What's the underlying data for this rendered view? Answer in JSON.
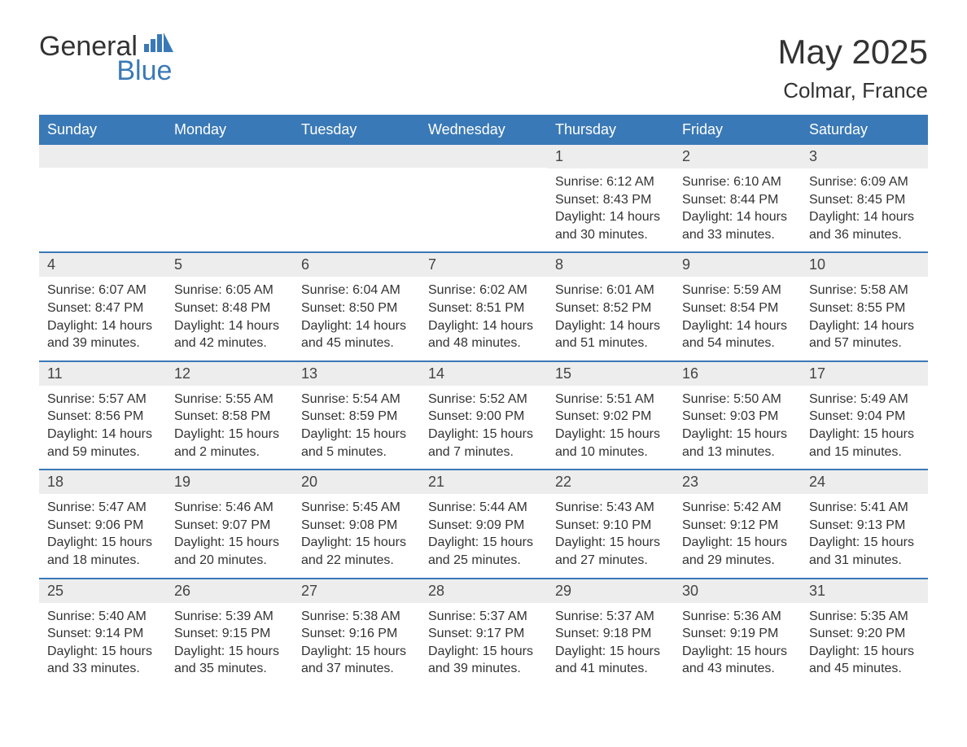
{
  "brand": {
    "name_part1": "General",
    "name_part2": "Blue",
    "color_text": "#333333",
    "color_accent": "#3a79b7"
  },
  "header": {
    "title": "May 2025",
    "location": "Colmar, France"
  },
  "calendar": {
    "header_bg": "#3a79b7",
    "header_text_color": "#ffffff",
    "row_border_color": "#3a79b7",
    "daynum_bg": "#ededed",
    "text_color": "#333333",
    "day_names": [
      "Sunday",
      "Monday",
      "Tuesday",
      "Wednesday",
      "Thursday",
      "Friday",
      "Saturday"
    ],
    "weeks": [
      [
        {
          "day": "",
          "sunrise": "",
          "sunset": "",
          "daylight": ""
        },
        {
          "day": "",
          "sunrise": "",
          "sunset": "",
          "daylight": ""
        },
        {
          "day": "",
          "sunrise": "",
          "sunset": "",
          "daylight": ""
        },
        {
          "day": "",
          "sunrise": "",
          "sunset": "",
          "daylight": ""
        },
        {
          "day": "1",
          "sunrise": "Sunrise: 6:12 AM",
          "sunset": "Sunset: 8:43 PM",
          "daylight": "Daylight: 14 hours and 30 minutes."
        },
        {
          "day": "2",
          "sunrise": "Sunrise: 6:10 AM",
          "sunset": "Sunset: 8:44 PM",
          "daylight": "Daylight: 14 hours and 33 minutes."
        },
        {
          "day": "3",
          "sunrise": "Sunrise: 6:09 AM",
          "sunset": "Sunset: 8:45 PM",
          "daylight": "Daylight: 14 hours and 36 minutes."
        }
      ],
      [
        {
          "day": "4",
          "sunrise": "Sunrise: 6:07 AM",
          "sunset": "Sunset: 8:47 PM",
          "daylight": "Daylight: 14 hours and 39 minutes."
        },
        {
          "day": "5",
          "sunrise": "Sunrise: 6:05 AM",
          "sunset": "Sunset: 8:48 PM",
          "daylight": "Daylight: 14 hours and 42 minutes."
        },
        {
          "day": "6",
          "sunrise": "Sunrise: 6:04 AM",
          "sunset": "Sunset: 8:50 PM",
          "daylight": "Daylight: 14 hours and 45 minutes."
        },
        {
          "day": "7",
          "sunrise": "Sunrise: 6:02 AM",
          "sunset": "Sunset: 8:51 PM",
          "daylight": "Daylight: 14 hours and 48 minutes."
        },
        {
          "day": "8",
          "sunrise": "Sunrise: 6:01 AM",
          "sunset": "Sunset: 8:52 PM",
          "daylight": "Daylight: 14 hours and 51 minutes."
        },
        {
          "day": "9",
          "sunrise": "Sunrise: 5:59 AM",
          "sunset": "Sunset: 8:54 PM",
          "daylight": "Daylight: 14 hours and 54 minutes."
        },
        {
          "day": "10",
          "sunrise": "Sunrise: 5:58 AM",
          "sunset": "Sunset: 8:55 PM",
          "daylight": "Daylight: 14 hours and 57 minutes."
        }
      ],
      [
        {
          "day": "11",
          "sunrise": "Sunrise: 5:57 AM",
          "sunset": "Sunset: 8:56 PM",
          "daylight": "Daylight: 14 hours and 59 minutes."
        },
        {
          "day": "12",
          "sunrise": "Sunrise: 5:55 AM",
          "sunset": "Sunset: 8:58 PM",
          "daylight": "Daylight: 15 hours and 2 minutes."
        },
        {
          "day": "13",
          "sunrise": "Sunrise: 5:54 AM",
          "sunset": "Sunset: 8:59 PM",
          "daylight": "Daylight: 15 hours and 5 minutes."
        },
        {
          "day": "14",
          "sunrise": "Sunrise: 5:52 AM",
          "sunset": "Sunset: 9:00 PM",
          "daylight": "Daylight: 15 hours and 7 minutes."
        },
        {
          "day": "15",
          "sunrise": "Sunrise: 5:51 AM",
          "sunset": "Sunset: 9:02 PM",
          "daylight": "Daylight: 15 hours and 10 minutes."
        },
        {
          "day": "16",
          "sunrise": "Sunrise: 5:50 AM",
          "sunset": "Sunset: 9:03 PM",
          "daylight": "Daylight: 15 hours and 13 minutes."
        },
        {
          "day": "17",
          "sunrise": "Sunrise: 5:49 AM",
          "sunset": "Sunset: 9:04 PM",
          "daylight": "Daylight: 15 hours and 15 minutes."
        }
      ],
      [
        {
          "day": "18",
          "sunrise": "Sunrise: 5:47 AM",
          "sunset": "Sunset: 9:06 PM",
          "daylight": "Daylight: 15 hours and 18 minutes."
        },
        {
          "day": "19",
          "sunrise": "Sunrise: 5:46 AM",
          "sunset": "Sunset: 9:07 PM",
          "daylight": "Daylight: 15 hours and 20 minutes."
        },
        {
          "day": "20",
          "sunrise": "Sunrise: 5:45 AM",
          "sunset": "Sunset: 9:08 PM",
          "daylight": "Daylight: 15 hours and 22 minutes."
        },
        {
          "day": "21",
          "sunrise": "Sunrise: 5:44 AM",
          "sunset": "Sunset: 9:09 PM",
          "daylight": "Daylight: 15 hours and 25 minutes."
        },
        {
          "day": "22",
          "sunrise": "Sunrise: 5:43 AM",
          "sunset": "Sunset: 9:10 PM",
          "daylight": "Daylight: 15 hours and 27 minutes."
        },
        {
          "day": "23",
          "sunrise": "Sunrise: 5:42 AM",
          "sunset": "Sunset: 9:12 PM",
          "daylight": "Daylight: 15 hours and 29 minutes."
        },
        {
          "day": "24",
          "sunrise": "Sunrise: 5:41 AM",
          "sunset": "Sunset: 9:13 PM",
          "daylight": "Daylight: 15 hours and 31 minutes."
        }
      ],
      [
        {
          "day": "25",
          "sunrise": "Sunrise: 5:40 AM",
          "sunset": "Sunset: 9:14 PM",
          "daylight": "Daylight: 15 hours and 33 minutes."
        },
        {
          "day": "26",
          "sunrise": "Sunrise: 5:39 AM",
          "sunset": "Sunset: 9:15 PM",
          "daylight": "Daylight: 15 hours and 35 minutes."
        },
        {
          "day": "27",
          "sunrise": "Sunrise: 5:38 AM",
          "sunset": "Sunset: 9:16 PM",
          "daylight": "Daylight: 15 hours and 37 minutes."
        },
        {
          "day": "28",
          "sunrise": "Sunrise: 5:37 AM",
          "sunset": "Sunset: 9:17 PM",
          "daylight": "Daylight: 15 hours and 39 minutes."
        },
        {
          "day": "29",
          "sunrise": "Sunrise: 5:37 AM",
          "sunset": "Sunset: 9:18 PM",
          "daylight": "Daylight: 15 hours and 41 minutes."
        },
        {
          "day": "30",
          "sunrise": "Sunrise: 5:36 AM",
          "sunset": "Sunset: 9:19 PM",
          "daylight": "Daylight: 15 hours and 43 minutes."
        },
        {
          "day": "31",
          "sunrise": "Sunrise: 5:35 AM",
          "sunset": "Sunset: 9:20 PM",
          "daylight": "Daylight: 15 hours and 45 minutes."
        }
      ]
    ]
  }
}
